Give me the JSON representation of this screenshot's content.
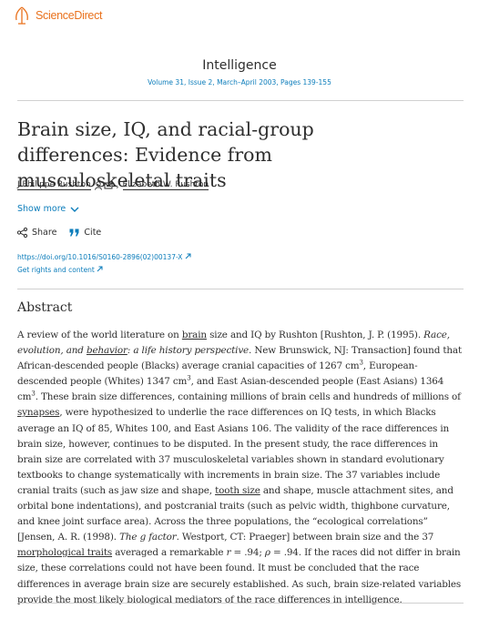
{
  "header": {
    "logo": "ScienceDirect"
  },
  "journal": {
    "name": "Intelligence",
    "issue_link": "Volume 31, Issue 2",
    "issue_rest": ", March–April 2003, Pages 139-155"
  },
  "article": {
    "title": "Brain size, IQ, and racial-group differences: Evidence from musculoskeletal traits",
    "authors": [
      "J.Philippe Rushton",
      "Elizabeth W. Rushton"
    ],
    "author_separator": ",",
    "show_more": "Show more",
    "share": "Share",
    "cite": "Cite",
    "doi": "https://doi.org/10.1016/S0160-2896(02)00137-X",
    "rights": "Get rights and content"
  },
  "abstract": {
    "heading": "Abstract",
    "segments": [
      "A review of the world literature on ",
      "brain",
      " size and IQ by Rushton [Rushton, J. P. (1995). ",
      "Race, evolution, and ",
      "behavior",
      ": a life history perspective",
      ". New Brunswick, NJ: Transaction] found that African-descended people (Blacks) average cranial capacities of 1267 cm",
      "3",
      ", European-descended people (Whites) 1347 cm",
      "3",
      ", and East Asian-descended people (East Asians) 1364 cm",
      "3",
      ". These brain size differences, containing millions of brain cells and hundreds of millions of ",
      "synapses",
      ", were hypothesized to underlie the race differences on IQ tests, in which Blacks average an IQ of 85, Whites 100, and East Asians 106. The validity of the race differences in brain size, however, continues to be disputed. In the present study, the race differences in brain size are correlated with 37 musculoskeletal variables shown in standard evolutionary textbooks to change systematically with increments in brain size. The 37 variables include cranial traits (such as jaw size and shape, ",
      "tooth size",
      " and shape, muscle attachment sites, and orbital bone indentations), and postcranial traits (such as pelvic width, thighbone curvature, and knee joint surface area). Across the three populations, the “ecological correlations” [Jensen, A. R. (1998). ",
      "The g factor",
      ". Westport, CT: Praeger] between brain size and the 37 ",
      "morphological traits",
      " averaged a remarkable ",
      "r",
      " = .94; ",
      "ρ",
      " = .94. If the races did not differ in brain size, these correlations could not have been found. It must be concluded that the race differences in average brain size are securely established. As such, brain size-related variables provide the most likely biological mediators of the race differences in intelligence."
    ]
  }
}
